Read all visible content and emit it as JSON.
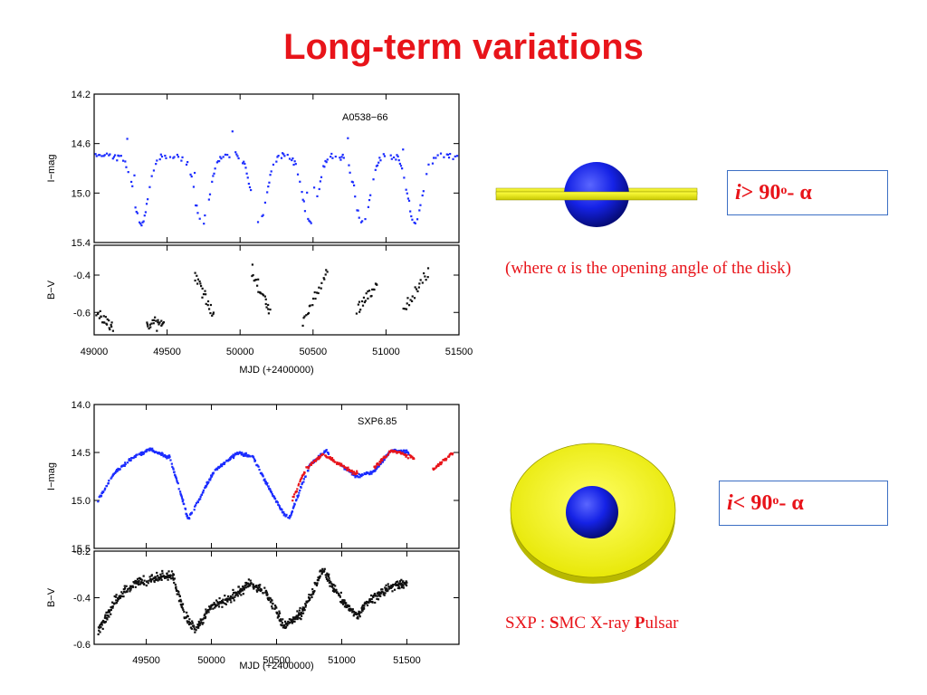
{
  "title": "Long-term variations",
  "colors": {
    "title": "#e8141a",
    "blue_points": "#1b2cff",
    "red_points": "#e8141a",
    "black_points": "#111111",
    "disk": "#ffff00",
    "sphere": "#0a17e0",
    "box_border": "#3c6fc4"
  },
  "formula_top": {
    "var": "i",
    "op": " > 90",
    "sup": "o",
    "rest": " - α"
  },
  "formula_bottom": {
    "var": "i",
    "op": " < 90",
    "sup": "o",
    "rest": " - α"
  },
  "where_note": "(where α is the opening angle of the disk)",
  "sxp_note": {
    "prefix": "SXP : ",
    "b1": "S",
    "t1": "MC X-ray ",
    "b2": "P",
    "t2": "ulsar"
  },
  "chart_data": [
    {
      "type": "scatter",
      "annotation": "A0538−66",
      "xlabel": "MJD (+2400000)",
      "x_ticks": [
        "49000",
        "49500",
        "50000",
        "50500",
        "51000",
        "51500"
      ],
      "xlim": [
        49000,
        51500
      ],
      "panels": [
        {
          "ylabel": "I−mag",
          "ylim": [
            15.4,
            14.2
          ],
          "y_ticks": [
            "14.2",
            "14.6",
            "15.0",
            "15.4"
          ],
          "series": [
            {
              "color": "blue",
              "baseline": 14.7,
              "dip_depth": 0.55,
              "dip_centers": [
                49320,
                49740,
                50130,
                50480,
                50840,
                51200
              ],
              "dip_width": 70,
              "range": [
                49000,
                51500
              ]
            }
          ]
        },
        {
          "ylabel": "B−V",
          "ylim": [
            -0.72,
            -0.24
          ],
          "y_ticks": [
            "-0.4",
            "-0.6"
          ],
          "series": [
            {
              "color": "black",
              "segments": [
                {
                  "x": [
                    49020,
                    49130
                  ],
                  "y": [
                    -0.6,
                    -0.68
                  ]
                },
                {
                  "x": [
                    49360,
                    49480
                  ],
                  "y": [
                    -0.66,
                    -0.66
                  ]
                },
                {
                  "x": [
                    49690,
                    49820
                  ],
                  "y": [
                    -0.4,
                    -0.62
                  ]
                },
                {
                  "x": [
                    50080,
                    50210
                  ],
                  "y": [
                    -0.38,
                    -0.6
                  ]
                },
                {
                  "x": [
                    50430,
                    50600
                  ],
                  "y": [
                    -0.65,
                    -0.38
                  ]
                },
                {
                  "x": [
                    50800,
                    50940
                  ],
                  "y": [
                    -0.58,
                    -0.45
                  ]
                },
                {
                  "x": [
                    51120,
                    51290
                  ],
                  "y": [
                    -0.6,
                    -0.38
                  ]
                }
              ]
            }
          ]
        }
      ]
    },
    {
      "type": "scatter",
      "annotation": "SXP6.85",
      "xlabel": "MJD (+2400000)",
      "x_ticks": [
        "49500",
        "50000",
        "50500",
        "51000",
        "51500"
      ],
      "xlim": [
        49100,
        51900
      ],
      "panels": [
        {
          "ylabel": "I−mag",
          "ylim": [
            15.5,
            14.0
          ],
          "y_ticks": [
            "14.0",
            "14.5",
            "15.0",
            "15.5"
          ],
          "series": [
            {
              "color": "blue",
              "curve": [
                [
                  49130,
                  15.0
                ],
                [
                  49250,
                  14.72
                ],
                [
                  49400,
                  14.55
                ],
                [
                  49530,
                  14.47
                ],
                [
                  49680,
                  14.55
                ],
                [
                  49780,
                  15.0
                ],
                [
                  49820,
                  15.2
                ],
                [
                  49900,
                  15.0
                ],
                [
                  50020,
                  14.7
                ],
                [
                  50200,
                  14.5
                ],
                [
                  50320,
                  14.55
                ],
                [
                  50460,
                  14.92
                ],
                [
                  50560,
                  15.15
                ],
                [
                  50600,
                  15.18
                ],
                [
                  50760,
                  14.62
                ],
                [
                  50880,
                  14.48
                ],
                [
                  51020,
                  14.66
                ],
                [
                  51110,
                  14.75
                ],
                [
                  51250,
                  14.7
                ],
                [
                  51380,
                  14.48
                ],
                [
                  51520,
                  14.5
                ]
              ]
            },
            {
              "color": "red",
              "curve": [
                [
                  50620,
                  15.0
                ],
                [
                  50720,
                  14.68
                ],
                [
                  50850,
                  14.52
                ],
                [
                  50980,
                  14.62
                ],
                [
                  51100,
                  14.72
                ],
                [
                  51250,
                  14.66
                ],
                [
                  51380,
                  14.48
                ],
                [
                  51560,
                  14.56
                ],
                [
                  51700,
                  14.68
                ],
                [
                  51860,
                  14.5
                ]
              ]
            }
          ]
        },
        {
          "ylabel": "B−V",
          "ylim": [
            -0.6,
            -0.2
          ],
          "y_ticks": [
            "-0.2",
            "-0.4",
            "-0.6"
          ],
          "series": [
            {
              "color": "black",
              "curve": [
                [
                  49130,
                  -0.55
                ],
                [
                  49250,
                  -0.42
                ],
                [
                  49400,
                  -0.34
                ],
                [
                  49550,
                  -0.32
                ],
                [
                  49700,
                  -0.3
                ],
                [
                  49800,
                  -0.48
                ],
                [
                  49880,
                  -0.54
                ],
                [
                  50000,
                  -0.44
                ],
                [
                  50150,
                  -0.4
                ],
                [
                  50300,
                  -0.34
                ],
                [
                  50420,
                  -0.38
                ],
                [
                  50560,
                  -0.52
                ],
                [
                  50700,
                  -0.46
                ],
                [
                  50860,
                  -0.28
                ],
                [
                  50960,
                  -0.38
                ],
                [
                  51050,
                  -0.44
                ],
                [
                  51120,
                  -0.48
                ],
                [
                  51200,
                  -0.42
                ],
                [
                  51350,
                  -0.36
                ],
                [
                  51500,
                  -0.33
                ]
              ]
            }
          ]
        }
      ]
    }
  ]
}
